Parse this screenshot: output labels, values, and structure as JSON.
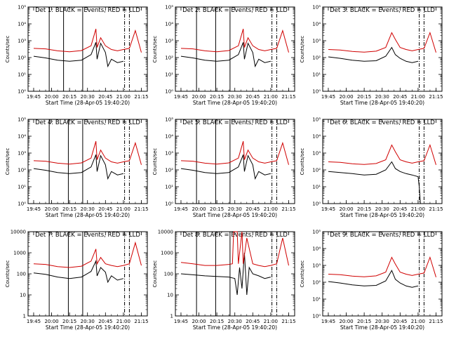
{
  "chart_data": [
    {
      "type": "line",
      "title": "Det 1: BLACK = Events, RED = LLD",
      "xlabel": "Start Time (28-Apr-05 19:40:20)",
      "ylabel": "Counts/sec",
      "yscale": "log",
      "ylim": [
        1,
        100000
      ],
      "ytick_labels": [
        "10⁰",
        "10¹",
        "10²",
        "10³",
        "10⁴",
        "10⁵"
      ],
      "xtick_labels": [
        "19:45",
        "20:00",
        "20:15",
        "20:30",
        "20:45",
        "21:00",
        "21:15"
      ],
      "vlines_solid": [
        "19:58",
        "20:10",
        "20:26"
      ],
      "vlines_dashed": [
        "21:01",
        "21:05"
      ],
      "series": [
        {
          "color": "#000000",
          "x": [
            "19:45",
            "19:55",
            "20:05",
            "20:15",
            "20:25",
            "20:33",
            "20:37",
            "20:38",
            "20:41",
            "20:45",
            "20:47",
            "20:50",
            "20:55",
            "21:00"
          ],
          "y": [
            120,
            95,
            70,
            60,
            70,
            150,
            800,
            80,
            700,
            200,
            30,
            80,
            50,
            60
          ]
        },
        {
          "color": "#d00000",
          "x": [
            "19:45",
            "19:55",
            "20:05",
            "20:15",
            "20:25",
            "20:33",
            "20:37",
            "20:38",
            "20:41",
            "20:45",
            "20:50",
            "20:55",
            "21:00",
            "21:05",
            "21:10",
            "21:15"
          ],
          "y": [
            350,
            330,
            250,
            220,
            260,
            500,
            5000,
            400,
            1500,
            500,
            300,
            250,
            300,
            350,
            4000,
            200
          ]
        }
      ]
    },
    {
      "type": "line",
      "title": "Det 2: BLACK = Events, RED = LLD",
      "xlabel": "Start Time (28-Apr-05 19:40:20)",
      "ylabel": "Counts/sec",
      "yscale": "log",
      "ylim": [
        1,
        100000
      ],
      "ytick_labels": [
        "10⁰",
        "10¹",
        "10²",
        "10³",
        "10⁴",
        "10⁵"
      ],
      "xtick_labels": [
        "19:45",
        "20:00",
        "20:15",
        "20:30",
        "20:45",
        "21:00",
        "21:15"
      ],
      "vlines_solid": [
        "19:58",
        "20:14",
        "20:26"
      ],
      "vlines_dashed": [
        "21:01",
        "21:05"
      ],
      "series": [
        {
          "color": "#000000",
          "x": [
            "19:45",
            "19:55",
            "20:05",
            "20:15",
            "20:25",
            "20:33",
            "20:37",
            "20:38",
            "20:41",
            "20:45",
            "20:47",
            "20:50",
            "20:55",
            "21:00"
          ],
          "y": [
            120,
            95,
            70,
            60,
            70,
            150,
            800,
            80,
            700,
            200,
            30,
            80,
            50,
            60
          ]
        },
        {
          "color": "#d00000",
          "x": [
            "19:45",
            "19:55",
            "20:05",
            "20:15",
            "20:25",
            "20:33",
            "20:37",
            "20:38",
            "20:41",
            "20:45",
            "20:50",
            "20:55",
            "21:00",
            "21:05",
            "21:10",
            "21:15"
          ],
          "y": [
            350,
            330,
            250,
            220,
            260,
            500,
            5000,
            400,
            1500,
            500,
            300,
            250,
            300,
            350,
            4000,
            200
          ]
        }
      ]
    },
    {
      "type": "line",
      "title": "Det 3: BLACK = Events, RED = LLD",
      "xlabel": "Start Time (28-Apr-05 19:40:20)",
      "ylabel": "Counts/sec",
      "yscale": "log",
      "ylim": [
        1,
        100000
      ],
      "ytick_labels": [
        "10⁰",
        "10¹",
        "10²",
        "10³",
        "10⁴",
        "10⁵"
      ],
      "xtick_labels": [
        "19:45",
        "20:00",
        "20:15",
        "20:30",
        "20:45",
        "21:00",
        "21:15"
      ],
      "vlines_solid": [],
      "vlines_dashed": [
        "21:01",
        "21:05"
      ],
      "series": [
        {
          "color": "#000000",
          "x": [
            "19:45",
            "19:55",
            "20:05",
            "20:15",
            "20:25",
            "20:33",
            "20:38",
            "20:41",
            "20:45",
            "20:50",
            "20:55",
            "21:00"
          ],
          "y": [
            110,
            90,
            70,
            60,
            65,
            120,
            400,
            150,
            90,
            60,
            50,
            60
          ]
        },
        {
          "color": "#d00000",
          "x": [
            "19:45",
            "19:55",
            "20:05",
            "20:15",
            "20:25",
            "20:33",
            "20:38",
            "20:41",
            "20:45",
            "20:50",
            "20:55",
            "21:00",
            "21:05",
            "21:10",
            "21:15"
          ],
          "y": [
            300,
            280,
            230,
            210,
            240,
            400,
            3000,
            1200,
            400,
            300,
            250,
            300,
            350,
            3000,
            200
          ]
        }
      ]
    },
    {
      "type": "line",
      "title": "Det 4: BLACK = Events, RED = LLD",
      "xlabel": "Start Time (28-Apr-05 19:40:20)",
      "ylabel": "Counts/sec",
      "yscale": "log",
      "ylim": [
        1,
        100000
      ],
      "ytick_labels": [
        "10⁰",
        "10¹",
        "10²",
        "10³",
        "10⁴",
        "10⁵"
      ],
      "xtick_labels": [
        "19:45",
        "20:00",
        "20:15",
        "20:30",
        "20:45",
        "21:00",
        "21:15"
      ],
      "vlines_solid": [
        "19:58",
        "20:14",
        "20:26"
      ],
      "vlines_dashed": [
        "21:01",
        "21:05"
      ],
      "series": [
        {
          "color": "#000000",
          "x": [
            "19:45",
            "19:55",
            "20:05",
            "20:15",
            "20:25",
            "20:33",
            "20:37",
            "20:38",
            "20:41",
            "20:45",
            "20:47",
            "20:50",
            "20:55",
            "21:00"
          ],
          "y": [
            120,
            95,
            70,
            60,
            70,
            150,
            800,
            80,
            700,
            200,
            30,
            80,
            50,
            60
          ]
        },
        {
          "color": "#d00000",
          "x": [
            "19:45",
            "19:55",
            "20:05",
            "20:15",
            "20:25",
            "20:33",
            "20:37",
            "20:38",
            "20:41",
            "20:45",
            "20:50",
            "20:55",
            "21:00",
            "21:05",
            "21:10",
            "21:15"
          ],
          "y": [
            350,
            330,
            250,
            220,
            260,
            500,
            5000,
            400,
            1500,
            500,
            300,
            250,
            300,
            350,
            4000,
            200
          ]
        }
      ]
    },
    {
      "type": "line",
      "title": "Det 5: BLACK = Events, RED = LLD",
      "xlabel": "Start Time (28-Apr-05 19:40:20)",
      "ylabel": "Counts/sec",
      "yscale": "log",
      "ylim": [
        1,
        100000
      ],
      "ytick_labels": [
        "10⁰",
        "10¹",
        "10²",
        "10³",
        "10⁴",
        "10⁵"
      ],
      "xtick_labels": [
        "19:45",
        "20:00",
        "20:15",
        "20:30",
        "20:45",
        "21:00",
        "21:15"
      ],
      "vlines_solid": [
        "19:58",
        "20:14",
        "20:26"
      ],
      "vlines_dashed": [
        "21:01",
        "21:05"
      ],
      "series": [
        {
          "color": "#000000",
          "x": [
            "19:45",
            "19:55",
            "20:05",
            "20:15",
            "20:25",
            "20:33",
            "20:37",
            "20:38",
            "20:41",
            "20:45",
            "20:47",
            "20:50",
            "20:55",
            "21:00"
          ],
          "y": [
            120,
            95,
            70,
            60,
            70,
            150,
            800,
            80,
            700,
            200,
            30,
            80,
            50,
            60
          ]
        },
        {
          "color": "#d00000",
          "x": [
            "19:45",
            "19:55",
            "20:05",
            "20:15",
            "20:25",
            "20:33",
            "20:37",
            "20:38",
            "20:41",
            "20:45",
            "20:50",
            "20:55",
            "21:00",
            "21:05",
            "21:10",
            "21:15"
          ],
          "y": [
            350,
            330,
            250,
            220,
            260,
            500,
            5000,
            400,
            1500,
            500,
            300,
            250,
            300,
            350,
            4000,
            200
          ]
        }
      ]
    },
    {
      "type": "line",
      "title": "Det 6: BLACK = Events, RED = LLD",
      "xlabel": "Start Time (28-Apr-05 19:40:20)",
      "ylabel": "Counts/sec",
      "yscale": "log",
      "ylim": [
        1,
        100000
      ],
      "ytick_labels": [
        "10⁰",
        "10¹",
        "10²",
        "10³",
        "10⁴",
        "10⁵"
      ],
      "xtick_labels": [
        "19:45",
        "20:00",
        "20:15",
        "20:30",
        "20:45",
        "21:00",
        "21:15"
      ],
      "vlines_solid": [],
      "vlines_dashed": [
        "21:01",
        "21:05"
      ],
      "series": [
        {
          "color": "#000000",
          "x": [
            "19:45",
            "19:55",
            "20:05",
            "20:15",
            "20:25",
            "20:33",
            "20:38",
            "20:41",
            "20:45",
            "20:50",
            "20:55",
            "21:00",
            "21:01",
            "21:02"
          ],
          "y": [
            80,
            70,
            60,
            50,
            55,
            100,
            300,
            120,
            80,
            60,
            50,
            40,
            10,
            1
          ]
        },
        {
          "color": "#d00000",
          "x": [
            "19:45",
            "19:55",
            "20:05",
            "20:15",
            "20:25",
            "20:33",
            "20:38",
            "20:41",
            "20:45",
            "20:50",
            "20:55",
            "21:00",
            "21:05",
            "21:10",
            "21:15"
          ],
          "y": [
            300,
            280,
            230,
            210,
            240,
            400,
            3000,
            1200,
            400,
            300,
            250,
            300,
            350,
            3000,
            200
          ]
        }
      ]
    },
    {
      "type": "line",
      "title": "Det 7: BLACK = Events, RED = LLD",
      "xlabel": "Start Time (28-Apr-05 19:40:20)",
      "ylabel": "Counts/sec",
      "yscale": "log",
      "ylim": [
        1,
        10000
      ],
      "ytick_labels": [
        "1",
        "10",
        "100",
        "1000",
        "10000"
      ],
      "xtick_labels": [
        "19:45",
        "20:00",
        "20:15",
        "20:30",
        "20:45",
        "21:00",
        "21:15"
      ],
      "vlines_solid": [
        "19:58",
        "20:14",
        "20:26"
      ],
      "vlines_dashed": [
        "21:01",
        "21:05"
      ],
      "series": [
        {
          "color": "#000000",
          "x": [
            "19:45",
            "19:55",
            "20:05",
            "20:15",
            "20:25",
            "20:33",
            "20:37",
            "20:38",
            "20:41",
            "20:45",
            "20:47",
            "20:50",
            "20:55",
            "21:00"
          ],
          "y": [
            110,
            95,
            70,
            60,
            70,
            130,
            400,
            80,
            200,
            120,
            40,
            80,
            50,
            60
          ]
        },
        {
          "color": "#d00000",
          "x": [
            "19:45",
            "19:55",
            "20:05",
            "20:15",
            "20:25",
            "20:33",
            "20:37",
            "20:38",
            "20:41",
            "20:45",
            "20:50",
            "20:55",
            "21:00",
            "21:05",
            "21:10",
            "21:15"
          ],
          "y": [
            300,
            280,
            220,
            200,
            230,
            400,
            1500,
            300,
            600,
            300,
            250,
            220,
            250,
            300,
            3000,
            250
          ]
        }
      ]
    },
    {
      "type": "line",
      "title": "Det 8: BLACK = Events, RED = LLD",
      "xlabel": "Start Time (28-Apr-05 19:40:20)",
      "ylabel": "Counts/sec",
      "yscale": "log",
      "ylim": [
        1,
        10000
      ],
      "ytick_labels": [
        "1",
        "10",
        "100",
        "1000",
        "10000"
      ],
      "xtick_labels": [
        "19:45",
        "20:00",
        "20:15",
        "20:30",
        "20:45",
        "21:00",
        "21:15"
      ],
      "vlines_solid": [
        "19:58",
        "20:14",
        "20:26"
      ],
      "vlines_dashed": [
        "21:01",
        "21:05"
      ],
      "series": [
        {
          "color": "#000000",
          "x": [
            "19:45",
            "19:55",
            "20:05",
            "20:15",
            "20:25",
            "20:30",
            "20:32",
            "20:34",
            "20:36",
            "20:38",
            "20:40",
            "20:42",
            "20:45",
            "20:50",
            "20:55",
            "21:00"
          ],
          "y": [
            100,
            90,
            80,
            75,
            70,
            60,
            10,
            200,
            20,
            1000,
            10,
            200,
            100,
            80,
            60,
            70
          ]
        },
        {
          "color": "#d00000",
          "x": [
            "19:45",
            "19:55",
            "20:05",
            "20:15",
            "20:25",
            "20:28",
            "20:29",
            "20:32",
            "20:33",
            "20:36",
            "20:37",
            "20:40",
            "20:45",
            "20:50",
            "20:55",
            "21:00",
            "21:05",
            "21:10",
            "21:15"
          ],
          "y": [
            350,
            300,
            250,
            250,
            280,
            300,
            10000,
            10000,
            300,
            10000,
            300,
            5000,
            300,
            250,
            220,
            250,
            300,
            5000,
            250
          ]
        }
      ]
    },
    {
      "type": "line",
      "title": "Det 9: BLACK = Events, RED = LLD",
      "xlabel": "Start Time (28-Apr-05 19:40:20)",
      "ylabel": "Counts/sec",
      "yscale": "log",
      "ylim": [
        1,
        100000
      ],
      "ytick_labels": [
        "10⁰",
        "10¹",
        "10²",
        "10³",
        "10⁴",
        "10⁵"
      ],
      "xtick_labels": [
        "19:45",
        "20:00",
        "20:15",
        "20:30",
        "20:45",
        "21:00",
        "21:15"
      ],
      "vlines_solid": [],
      "vlines_dashed": [
        "21:01",
        "21:05"
      ],
      "series": [
        {
          "color": "#000000",
          "x": [
            "19:45",
            "19:55",
            "20:05",
            "20:15",
            "20:25",
            "20:33",
            "20:38",
            "20:41",
            "20:45",
            "20:50",
            "20:55",
            "21:00"
          ],
          "y": [
            110,
            90,
            70,
            60,
            65,
            120,
            500,
            150,
            90,
            60,
            50,
            60
          ]
        },
        {
          "color": "#d00000",
          "x": [
            "19:45",
            "19:55",
            "20:05",
            "20:15",
            "20:25",
            "20:33",
            "20:38",
            "20:41",
            "20:45",
            "20:50",
            "20:55",
            "21:00",
            "21:05",
            "21:10",
            "21:15"
          ],
          "y": [
            300,
            280,
            230,
            210,
            240,
            400,
            3000,
            1200,
            400,
            300,
            250,
            300,
            350,
            3000,
            200
          ]
        }
      ]
    }
  ]
}
